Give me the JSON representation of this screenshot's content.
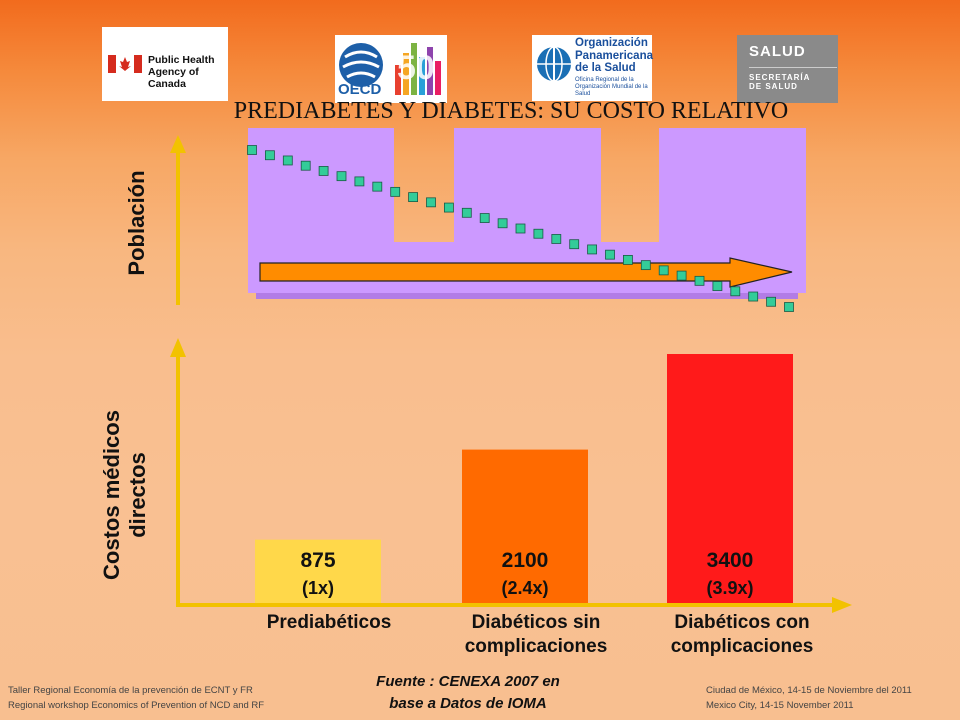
{
  "title": "PREDIABETES Y DIABETES: SU COSTO RELATIVO",
  "logos": {
    "phac": {
      "line1": "Public Health",
      "line2": "Agency of Canada"
    },
    "oecd": {
      "text": "OECD",
      "number": "50"
    },
    "ops": {
      "line1": "Organización",
      "line2": "Panamericana",
      "line3": "de la Salud",
      "sub1": "Oficina Regional de la",
      "sub2": "Organización Mundial de la Salud"
    },
    "salud": {
      "line1": "SALUD",
      "line2": "SECRETARÍA",
      "line3": "DE SALUD"
    }
  },
  "colors": {
    "population_fill": "#cc99ff",
    "points": "#33cc99",
    "arrow": "#ff8c00",
    "axis": "#f2c200"
  },
  "chart_data": [
    {
      "type": "bar",
      "ylabel": "Población",
      "note": "Población representada sólo por altura de bloques, sin escala numérica",
      "trend": "decreasing"
    },
    {
      "type": "bar",
      "ylabel": "Costos médicos directos",
      "categories": [
        "Prediabéticos",
        "Diabéticos sin complicaciones",
        "Diabéticos con complicaciones"
      ],
      "category_lines": [
        [
          "Prediabéticos"
        ],
        [
          "Diabéticos sin",
          "complicaciones"
        ],
        [
          "Diabéticos con",
          "complicaciones"
        ]
      ],
      "values": [
        875,
        2100,
        3400
      ],
      "value_labels": [
        "875",
        "2100",
        "3400"
      ],
      "ratio_labels": [
        "(1x)",
        "(2.4x)",
        "(3.9x)"
      ],
      "bar_colors": [
        "#ffd84a",
        "#ff6a00",
        "#ff1a1a"
      ],
      "ylim": [
        0,
        3400
      ]
    }
  ],
  "source": {
    "line1": "Fuente : CENEXA 2007 en",
    "line2": "base a Datos de IOMA"
  },
  "footer_left": {
    "line1": "Taller Regional Economía de la prevención de ECNT y FR",
    "line2": "Regional workshop Economics of Prevention of NCD and RF"
  },
  "footer_right": {
    "line1": "Ciudad de México,  14-15  de Noviembre del 2011",
    "line2": "Mexico City, 14-15  November  2011"
  }
}
